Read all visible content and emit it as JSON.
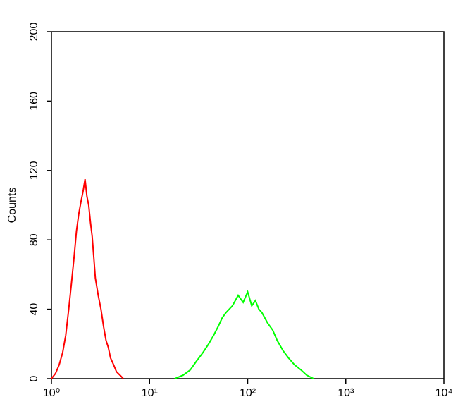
{
  "chart_data": {
    "type": "line",
    "y_label": "Counts",
    "xscale": "log",
    "xlim": [
      1,
      10000
    ],
    "xticks": [
      {
        "value": 1,
        "label": "10⁰"
      },
      {
        "value": 10,
        "label": "10¹"
      },
      {
        "value": 100,
        "label": "10²"
      },
      {
        "value": 1000,
        "label": "10³"
      },
      {
        "value": 10000,
        "label": "10⁴"
      }
    ],
    "ylim": [
      0,
      200
    ],
    "yticks": [
      0,
      40,
      80,
      120,
      160,
      200
    ],
    "series": [
      {
        "color": "#ff0000",
        "x": [
          1.0,
          1.1,
          1.2,
          1.3,
          1.4,
          1.5,
          1.6,
          1.7,
          1.8,
          1.9,
          2.0,
          2.1,
          2.2,
          2.3,
          2.4,
          2.5,
          2.6,
          2.7,
          2.8,
          3.0,
          3.2,
          3.4,
          3.6,
          3.8,
          4.0,
          4.3,
          4.6,
          5.0,
          5.4
        ],
        "values": [
          0,
          3,
          8,
          15,
          25,
          40,
          55,
          70,
          85,
          95,
          102,
          108,
          115,
          105,
          100,
          90,
          82,
          70,
          58,
          48,
          40,
          30,
          22,
          18,
          12,
          8,
          4,
          2,
          0
        ]
      },
      {
        "color": "#00ff00",
        "x": [
          18,
          22,
          26,
          30,
          35,
          40,
          45,
          50,
          55,
          60,
          70,
          80,
          90,
          100,
          110,
          120,
          130,
          140,
          160,
          180,
          200,
          230,
          260,
          300,
          350,
          400,
          470
        ],
        "values": [
          0,
          2,
          5,
          10,
          15,
          20,
          25,
          30,
          35,
          38,
          42,
          48,
          44,
          50,
          42,
          45,
          40,
          38,
          32,
          28,
          22,
          16,
          12,
          8,
          5,
          2,
          0
        ]
      }
    ]
  }
}
